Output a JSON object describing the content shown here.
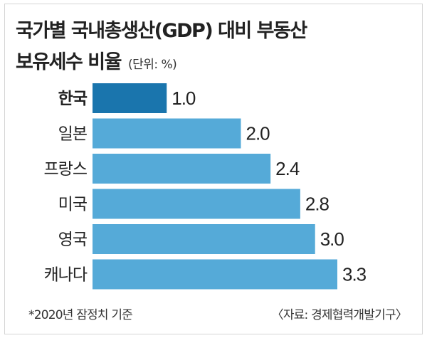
{
  "title": {
    "line1": "국가별 국내총생산(GDP) 대비 부동산",
    "line2": "보유세수 비율",
    "unit": "(단위: %)"
  },
  "colors": {
    "highlight": "#1a75ad",
    "bar": "#55aad8",
    "text": "#222222"
  },
  "chart_data": {
    "type": "bar",
    "orientation": "horizontal",
    "title": "국가별 국내총생산(GDP) 대비 부동산 보유세수 비율",
    "unit": "(단위: %)",
    "categories": [
      "한국",
      "일본",
      "프랑스",
      "미국",
      "영국",
      "캐나다"
    ],
    "values": [
      1.0,
      2.0,
      2.4,
      2.8,
      3.0,
      3.3
    ],
    "value_labels": [
      "1.0",
      "2.0",
      "2.4",
      "2.8",
      "3.0",
      "3.3"
    ],
    "highlight_index": 0,
    "xlim": [
      0,
      3.3
    ],
    "grid": false,
    "legend": "none"
  },
  "footer": {
    "note": "*2020년 잠정치 기준",
    "source": "〈자료: 경제협력개발기구〉"
  }
}
